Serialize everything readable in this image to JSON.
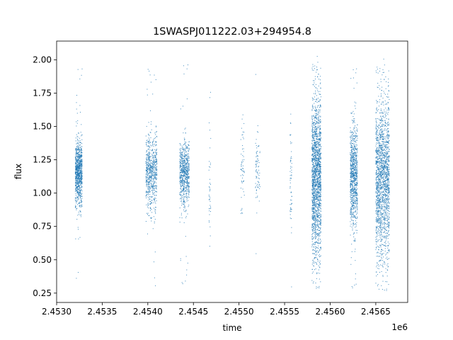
{
  "chart_data": {
    "type": "scatter",
    "title": "1SWASPJ011222.03+294954.8",
    "xlabel": "time",
    "ylabel": "flux",
    "x_offset_text": "1e6",
    "xlim": [
      2453000,
      2456850
    ],
    "ylim": [
      0.18,
      2.14
    ],
    "x_ticks": [
      2453000,
      2453500,
      2454000,
      2454500,
      2455000,
      2455500,
      2456000,
      2456500
    ],
    "x_tick_labels": [
      "2.4530",
      "2.4535",
      "2.4540",
      "2.4545",
      "2.4550",
      "2.4555",
      "2.4560",
      "2.4565"
    ],
    "y_ticks": [
      0.25,
      0.5,
      0.75,
      1.0,
      1.25,
      1.5,
      1.75,
      2.0
    ],
    "y_tick_labels": [
      "0.25",
      "0.50",
      "0.75",
      "1.00",
      "1.25",
      "1.50",
      "1.75",
      "2.00"
    ],
    "grid": false,
    "marker_color": "#1f77b4",
    "series": [
      {
        "clusters": [
          {
            "x_start": 2453205,
            "x_end": 2453280,
            "center": 1.15,
            "spread": 0.12,
            "n": 900
          },
          {
            "x_start": 2453980,
            "x_end": 2454100,
            "center": 1.15,
            "spread": 0.14,
            "n": 700
          },
          {
            "x_start": 2454350,
            "x_end": 2454455,
            "center": 1.15,
            "spread": 0.12,
            "n": 700
          },
          {
            "x_start": 2454670,
            "x_end": 2454690,
            "center": 1.05,
            "spread": 0.2,
            "n": 40
          },
          {
            "x_start": 2455020,
            "x_end": 2455060,
            "center": 1.15,
            "spread": 0.2,
            "n": 60
          },
          {
            "x_start": 2455180,
            "x_end": 2455230,
            "center": 1.15,
            "spread": 0.15,
            "n": 80
          },
          {
            "x_start": 2455560,
            "x_end": 2455580,
            "center": 1.1,
            "spread": 0.2,
            "n": 60
          },
          {
            "x_start": 2455800,
            "x_end": 2455900,
            "center": 1.12,
            "spread": 0.3,
            "n": 1800
          },
          {
            "x_start": 2456220,
            "x_end": 2456300,
            "center": 1.12,
            "spread": 0.2,
            "n": 900
          },
          {
            "x_start": 2456500,
            "x_end": 2456650,
            "center": 1.1,
            "spread": 0.3,
            "n": 1800
          }
        ]
      }
    ]
  }
}
